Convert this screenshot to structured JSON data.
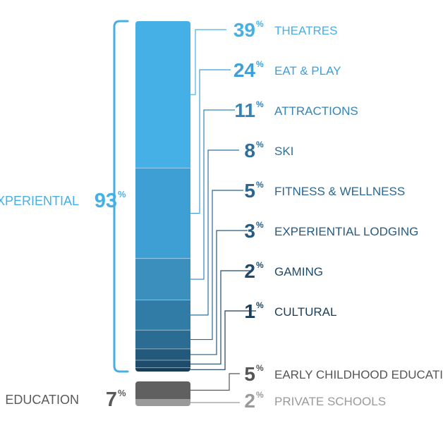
{
  "chart_data": {
    "type": "bar",
    "groups": [
      {
        "name": "EXPERIENTIAL",
        "value": 93,
        "color": "#45b0e6",
        "items": [
          {
            "name": "THEATRES",
            "value": 39,
            "color": "#45b0e6",
            "label_color": "#45b0e6"
          },
          {
            "name": "EAT & PLAY",
            "value": 24,
            "color": "#3e9fd4",
            "label_color": "#3f9fd6"
          },
          {
            "name": "ATTRACTIONS",
            "value": 11,
            "color": "#3a8fbd",
            "label_color": "#3584b8"
          },
          {
            "name": "SKI",
            "value": 8,
            "color": "#317ca6",
            "label_color": "#2e6f9c"
          },
          {
            "name": "FITNESS & WELLNESS",
            "value": 5,
            "color": "#2b6c92",
            "label_color": "#2b6690"
          },
          {
            "name": "EXPERIENTIAL LODGING",
            "value": 3,
            "color": "#235a7c",
            "label_color": "#275a80"
          },
          {
            "name": "GAMING",
            "value": 2,
            "color": "#1e4c6a",
            "label_color": "#1f4a6a"
          },
          {
            "name": "CULTURAL",
            "value": 1,
            "color": "#173c55",
            "label_color": "#1b3d58"
          }
        ]
      },
      {
        "name": "EDUCATION",
        "value": 7,
        "color": "#5a5a5a",
        "items": [
          {
            "name": "EARLY CHILDHOOD EDUCATION",
            "value": 5,
            "color": "#606060",
            "label_color": "#555555"
          },
          {
            "name": "PRIVATE SCHOOLS",
            "value": 2,
            "color": "#9a9a9a",
            "label_color": "#9a9a9a"
          }
        ]
      }
    ],
    "value_suffix": "%"
  }
}
